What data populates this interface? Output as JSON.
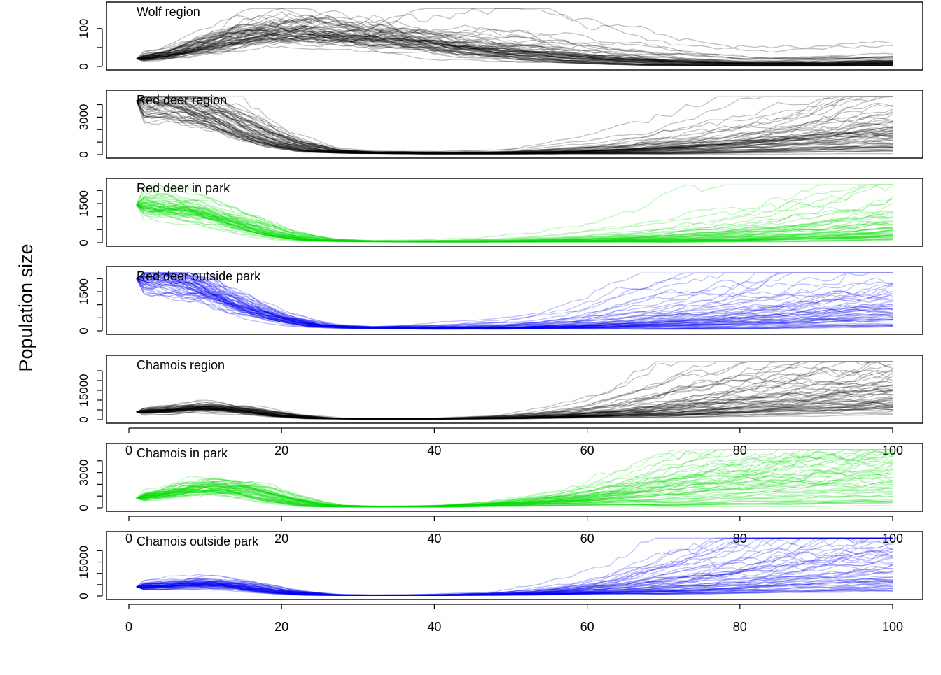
{
  "figure": {
    "ylabel": "Population size"
  },
  "chart_data": [
    {
      "type": "line",
      "title": "Wolf region",
      "xlim": [
        0,
        100
      ],
      "ylim": [
        0,
        155
      ],
      "yticks": [
        0,
        50,
        100
      ],
      "ytick_labels": [
        "0",
        "",
        "100"
      ],
      "color": "#000000",
      "start_value": 20,
      "envelope": {
        "x": [
          1,
          5,
          10,
          15,
          20,
          25,
          30,
          40,
          50,
          60,
          70,
          80,
          90,
          100
        ],
        "y": [
          20,
          30,
          55,
          80,
          95,
          90,
          80,
          55,
          35,
          20,
          10,
          6,
          6,
          8
        ]
      },
      "n_runs": 60
    },
    {
      "type": "line",
      "title": "Red deer region",
      "xlim": [
        0,
        100
      ],
      "ylim": [
        0,
        4700
      ],
      "yticks": [
        0,
        1000,
        2000,
        3000,
        4000
      ],
      "ytick_labels": [
        "0",
        "",
        "",
        "3000",
        ""
      ],
      "color": "#000000",
      "start_value": 4300,
      "envelope": {
        "x": [
          1,
          5,
          10,
          15,
          20,
          25,
          30,
          40,
          50,
          60,
          70,
          80,
          90,
          100
        ],
        "y": [
          4300,
          4100,
          3300,
          2000,
          900,
          300,
          150,
          80,
          100,
          200,
          350,
          600,
          1000,
          1500
        ]
      },
      "n_runs": 60
    },
    {
      "type": "line",
      "title": "Red deer in park",
      "xlim": [
        0,
        100
      ],
      "ylim": [
        0,
        2250
      ],
      "yticks": [
        0,
        500,
        1000,
        1500,
        2000
      ],
      "ytick_labels": [
        "0",
        "",
        "",
        "1500",
        ""
      ],
      "color": "#00dd00",
      "start_value": 1450,
      "envelope": {
        "x": [
          1,
          5,
          10,
          15,
          20,
          25,
          30,
          40,
          50,
          60,
          70,
          80,
          90,
          100
        ],
        "y": [
          1450,
          1350,
          1100,
          700,
          300,
          100,
          60,
          40,
          50,
          90,
          150,
          250,
          400,
          650
        ]
      },
      "n_runs": 60
    },
    {
      "type": "line",
      "title": "Red deer outside park",
      "xlim": [
        0,
        100
      ],
      "ylim": [
        0,
        2250
      ],
      "yticks": [
        0,
        500,
        1000,
        1500,
        2000
      ],
      "ytick_labels": [
        "0",
        "",
        "",
        "1500",
        ""
      ],
      "color": "#0000ee",
      "start_value": 2000,
      "envelope": {
        "x": [
          1,
          5,
          10,
          15,
          20,
          25,
          30,
          40,
          50,
          60,
          70,
          80,
          90,
          100
        ],
        "y": [
          2000,
          1900,
          1500,
          900,
          450,
          180,
          120,
          100,
          120,
          200,
          350,
          500,
          700,
          900
        ]
      },
      "n_runs": 60
    },
    {
      "type": "line",
      "title": "Chamois region",
      "xlim": [
        0,
        100
      ],
      "ylim": [
        0,
        30000
      ],
      "yticks": [
        0,
        5000,
        10000,
        15000,
        20000,
        25000
      ],
      "ytick_labels": [
        "0",
        "",
        "",
        "15000",
        "",
        ""
      ],
      "color": "#000000",
      "start_value": 4000,
      "envelope": {
        "x": [
          1,
          5,
          10,
          15,
          20,
          25,
          30,
          40,
          50,
          60,
          70,
          80,
          90,
          100
        ],
        "y": [
          4000,
          5000,
          6500,
          5000,
          2200,
          700,
          400,
          400,
          900,
          2500,
          5500,
          9000,
          13000,
          16000
        ]
      },
      "n_runs": 60
    },
    {
      "type": "line",
      "title": "Chamois in park",
      "xlim": [
        0,
        100
      ],
      "ylim": [
        0,
        5000
      ],
      "yticks": [
        0,
        1000,
        2000,
        3000,
        4000
      ],
      "ytick_labels": [
        "0",
        "",
        "",
        "3000",
        ""
      ],
      "color": "#00dd00",
      "start_value": 800,
      "envelope": {
        "x": [
          1,
          5,
          10,
          15,
          20,
          25,
          30,
          40,
          50,
          60,
          70,
          80,
          90,
          100
        ],
        "y": [
          800,
          1200,
          1700,
          1500,
          700,
          180,
          100,
          100,
          300,
          700,
          1300,
          1900,
          2400,
          2800
        ]
      },
      "n_runs": 60
    },
    {
      "type": "line",
      "title": "Chamois outside park",
      "xlim": [
        0,
        100
      ],
      "ylim": [
        0,
        26000
      ],
      "yticks": [
        0,
        5000,
        10000,
        15000,
        20000
      ],
      "ytick_labels": [
        "0",
        "",
        "",
        "15000",
        ""
      ],
      "color": "#0000ee",
      "start_value": 4000,
      "envelope": {
        "x": [
          1,
          5,
          10,
          15,
          20,
          25,
          30,
          40,
          50,
          60,
          70,
          80,
          90,
          100
        ],
        "y": [
          4000,
          4500,
          5500,
          4200,
          1800,
          500,
          300,
          300,
          700,
          2000,
          4500,
          7500,
          11000,
          14000
        ]
      },
      "n_runs": 60
    }
  ],
  "x_axis": {
    "ticks": [
      0,
      20,
      40,
      60,
      80,
      100
    ],
    "tick_labels": [
      "0",
      "20",
      "40",
      "60",
      "80",
      "100"
    ]
  }
}
